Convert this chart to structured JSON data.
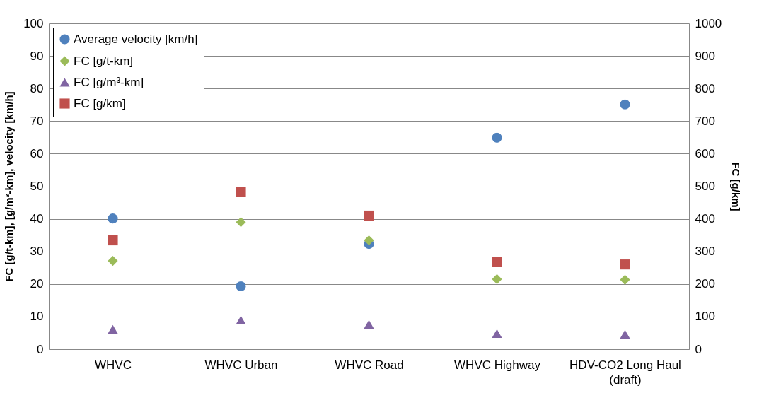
{
  "chart_data": {
    "type": "scatter",
    "categories": [
      "WHVC",
      "WHVC Urban",
      "WHVC Road",
      "WHVC Highway",
      "HDV-CO2 Long Haul (draft)"
    ],
    "series": [
      {
        "name": "Average velocity [km/h]",
        "color": "#4f81bd",
        "marker": "circle",
        "values": [
          40.1,
          19.3,
          32.3,
          64.9,
          75.1
        ]
      },
      {
        "name": "FC [g/t-km]",
        "color": "#9bbb59",
        "marker": "diamond",
        "values": [
          27.1,
          39.0,
          33.4,
          21.5,
          21.3
        ]
      },
      {
        "name": "FC [g/m³-km]",
        "color": "#8064a2",
        "marker": "triangle",
        "values": [
          6.1,
          8.9,
          7.6,
          4.8,
          4.6
        ]
      },
      {
        "name": "FC [g/km]",
        "color": "#c0504d",
        "marker": "square",
        "axis": "y2",
        "values": [
          334,
          482,
          410,
          267,
          260
        ]
      }
    ],
    "ylabel": "FC [g/t-km], [g/m³-km], velocity [km/h]",
    "y2label": "FC [g/km]",
    "ylim": [
      0,
      100
    ],
    "yticks": [
      0,
      10,
      20,
      30,
      40,
      50,
      60,
      70,
      80,
      90,
      100
    ],
    "y2lim": [
      0,
      1000
    ],
    "y2ticks": [
      0,
      100,
      200,
      300,
      400,
      500,
      600,
      700,
      800,
      900,
      1000
    ],
    "grid": "y",
    "legend": "top left"
  }
}
